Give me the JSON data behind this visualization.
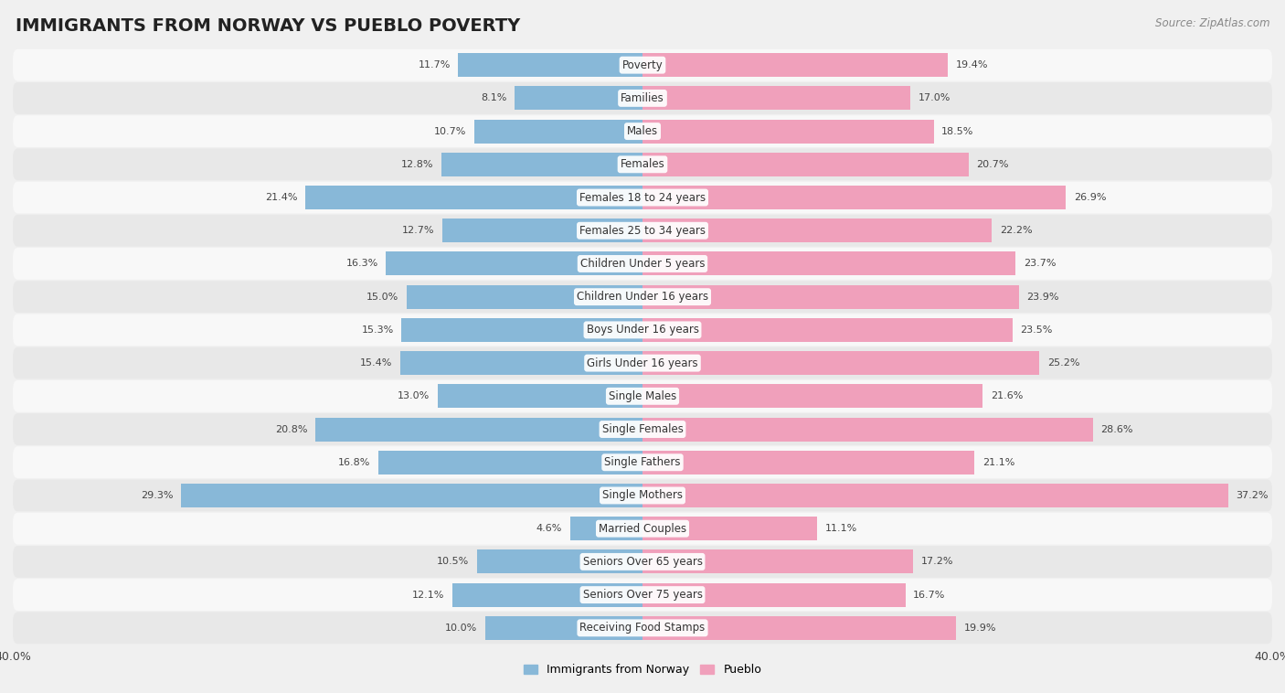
{
  "title": "IMMIGRANTS FROM NORWAY VS PUEBLO POVERTY",
  "source": "Source: ZipAtlas.com",
  "categories": [
    "Poverty",
    "Families",
    "Males",
    "Females",
    "Females 18 to 24 years",
    "Females 25 to 34 years",
    "Children Under 5 years",
    "Children Under 16 years",
    "Boys Under 16 years",
    "Girls Under 16 years",
    "Single Males",
    "Single Females",
    "Single Fathers",
    "Single Mothers",
    "Married Couples",
    "Seniors Over 65 years",
    "Seniors Over 75 years",
    "Receiving Food Stamps"
  ],
  "norway_values": [
    11.7,
    8.1,
    10.7,
    12.8,
    21.4,
    12.7,
    16.3,
    15.0,
    15.3,
    15.4,
    13.0,
    20.8,
    16.8,
    29.3,
    4.6,
    10.5,
    12.1,
    10.0
  ],
  "pueblo_values": [
    19.4,
    17.0,
    18.5,
    20.7,
    26.9,
    22.2,
    23.7,
    23.9,
    23.5,
    25.2,
    21.6,
    28.6,
    21.1,
    37.2,
    11.1,
    17.2,
    16.7,
    19.9
  ],
  "norway_color": "#88b8d8",
  "pueblo_color": "#f0a0bb",
  "norway_label": "Immigrants from Norway",
  "pueblo_label": "Pueblo",
  "max_val": 40.0,
  "background_color": "#f0f0f0",
  "row_bg_light": "#f8f8f8",
  "row_bg_dark": "#e8e8e8",
  "bar_height": 0.72,
  "title_fontsize": 14,
  "label_fontsize": 8.5,
  "value_fontsize": 8.0
}
